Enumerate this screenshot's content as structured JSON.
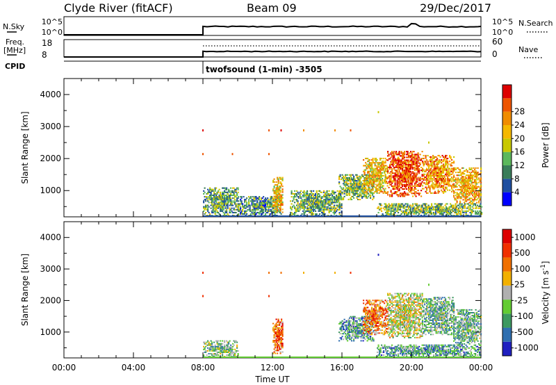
{
  "header": {
    "station": "Clyde River (fitACF)",
    "beam": "Beam 09",
    "date": "29/Dec/2017"
  },
  "status_panels": {
    "nsky_label": "N.Sky",
    "nsky_ticks": [
      "10^5",
      "10^0"
    ],
    "nsearch_label": "N.Search",
    "freq_label": "Freq.",
    "freq_unit": "[MHz]",
    "freq_ticks": [
      "18",
      "8"
    ],
    "nave_ticks": [
      "60",
      "0"
    ],
    "nave_label": "Nave",
    "cpid_label": "CPID",
    "cpid_text": "twofsound (1-min) -3505"
  },
  "colors": {
    "power": [
      "#0000ff",
      "#1f4fa0",
      "#3a7d5a",
      "#5cb85c",
      "#c8c800",
      "#f5b800",
      "#f08c00",
      "#ee5500",
      "#dd0000"
    ],
    "velocity": [
      "#2020c0",
      "#2f6fb0",
      "#3d9960",
      "#63cc33",
      "#b0b0b0",
      "#f2b000",
      "#f07000",
      "#f03000",
      "#dd0000"
    ]
  },
  "chart_data": [
    {
      "type": "heatmap",
      "title": "",
      "xlabel": "",
      "ylabel": "Slant Range [km]",
      "x_ticks": [
        "00:00",
        "04:00",
        "08:00",
        "12:00",
        "16:00",
        "20:00",
        "00:00"
      ],
      "y_ticks": [
        1000,
        2000,
        3000,
        4000
      ],
      "xlim_hours": [
        0,
        24
      ],
      "ylim": [
        180,
        4500
      ],
      "colorbar": {
        "label": "Power [dB]",
        "ticks": [
          "4",
          "8",
          "12",
          "16",
          "20",
          "24",
          "28"
        ],
        "range": [
          0,
          30
        ]
      },
      "data_start_hour": 8,
      "echo_regions": [
        {
          "t0": 8.0,
          "t1": 10.0,
          "r0": 200,
          "r1": 1100,
          "level": 0.35
        },
        {
          "t0": 10.0,
          "t1": 12.5,
          "r0": 200,
          "r1": 800,
          "level": 0.3
        },
        {
          "t0": 12.0,
          "t1": 12.6,
          "r0": 300,
          "r1": 1400,
          "level": 0.6
        },
        {
          "t0": 13.0,
          "t1": 16.0,
          "r0": 200,
          "r1": 1000,
          "level": 0.35
        },
        {
          "t0": 15.8,
          "t1": 17.8,
          "r0": 700,
          "r1": 1500,
          "level": 0.4
        },
        {
          "t0": 17.2,
          "t1": 18.6,
          "r0": 900,
          "r1": 2000,
          "level": 0.6
        },
        {
          "t0": 18.6,
          "t1": 20.6,
          "r0": 800,
          "r1": 2200,
          "level": 0.85
        },
        {
          "t0": 20.6,
          "t1": 22.4,
          "r0": 900,
          "r1": 2100,
          "level": 0.7
        },
        {
          "t0": 22.4,
          "t1": 24.0,
          "r0": 600,
          "r1": 1700,
          "level": 0.65
        },
        {
          "t0": 18.0,
          "t1": 24.0,
          "r0": 200,
          "r1": 600,
          "level": 0.4
        }
      ],
      "isolated_points": [
        {
          "t": 8.0,
          "r": 2880,
          "level": 0.9
        },
        {
          "t": 8.0,
          "r": 2140,
          "level": 0.85
        },
        {
          "t": 9.7,
          "r": 2140,
          "level": 0.8
        },
        {
          "t": 11.8,
          "r": 2880,
          "level": 0.85
        },
        {
          "t": 11.8,
          "r": 2140,
          "level": 0.8
        },
        {
          "t": 12.5,
          "r": 2880,
          "level": 0.9
        },
        {
          "t": 13.8,
          "r": 2880,
          "level": 0.7
        },
        {
          "t": 15.6,
          "r": 2880,
          "level": 0.75
        },
        {
          "t": 16.5,
          "r": 2880,
          "level": 0.85
        },
        {
          "t": 18.1,
          "r": 3450,
          "level": 0.5
        },
        {
          "t": 21.0,
          "r": 2500,
          "level": 0.5
        }
      ]
    },
    {
      "type": "heatmap",
      "title": "",
      "xlabel": "Time UT",
      "ylabel": "Slant Range [km]",
      "x_ticks": [
        "00:00",
        "04:00",
        "08:00",
        "12:00",
        "16:00",
        "20:00",
        "00:00"
      ],
      "y_ticks": [
        1000,
        2000,
        3000,
        4000
      ],
      "xlim_hours": [
        0,
        24
      ],
      "ylim": [
        180,
        4500
      ],
      "colorbar": {
        "label": "Velocity [m s^-1]",
        "label_main": "Velocity",
        "label_unit_base": "[m s",
        "label_unit_exp": "-1",
        "label_unit_close": "]",
        "ticks": [
          "1000",
          "500",
          "100",
          "25",
          "-25",
          "-100",
          "-500",
          "-1000"
        ]
      },
      "data_start_hour": 8,
      "echo_regions": [
        {
          "t0": 8.0,
          "t1": 10.0,
          "r0": 200,
          "r1": 700,
          "level": 0.4
        },
        {
          "t0": 12.0,
          "t1": 12.6,
          "r0": 300,
          "r1": 1400,
          "level": 0.75
        },
        {
          "t0": 15.8,
          "t1": 17.8,
          "r0": 700,
          "r1": 1500,
          "level": 0.3
        },
        {
          "t0": 17.2,
          "t1": 18.6,
          "r0": 900,
          "r1": 2000,
          "level": 0.7
        },
        {
          "t0": 18.6,
          "t1": 20.6,
          "r0": 800,
          "r1": 2200,
          "level": 0.5
        },
        {
          "t0": 20.6,
          "t1": 22.4,
          "r0": 900,
          "r1": 2100,
          "level": 0.35
        },
        {
          "t0": 22.4,
          "t1": 24.0,
          "r0": 600,
          "r1": 1700,
          "level": 0.35
        },
        {
          "t0": 18.0,
          "t1": 24.0,
          "r0": 200,
          "r1": 600,
          "level": 0.3
        }
      ],
      "isolated_points": [
        {
          "t": 8.0,
          "r": 2880,
          "level": 0.8
        },
        {
          "t": 8.0,
          "r": 2140,
          "level": 0.85
        },
        {
          "t": 11.8,
          "r": 2880,
          "level": 0.7
        },
        {
          "t": 11.8,
          "r": 2140,
          "level": 0.85
        },
        {
          "t": 12.5,
          "r": 2880,
          "level": 0.7
        },
        {
          "t": 13.8,
          "r": 2880,
          "level": 0.6
        },
        {
          "t": 15.6,
          "r": 2880,
          "level": 0.6
        },
        {
          "t": 16.5,
          "r": 2880,
          "level": 0.8
        },
        {
          "t": 18.1,
          "r": 3450,
          "level": 0.05
        },
        {
          "t": 21.0,
          "r": 2500,
          "level": 0.35
        }
      ]
    }
  ]
}
